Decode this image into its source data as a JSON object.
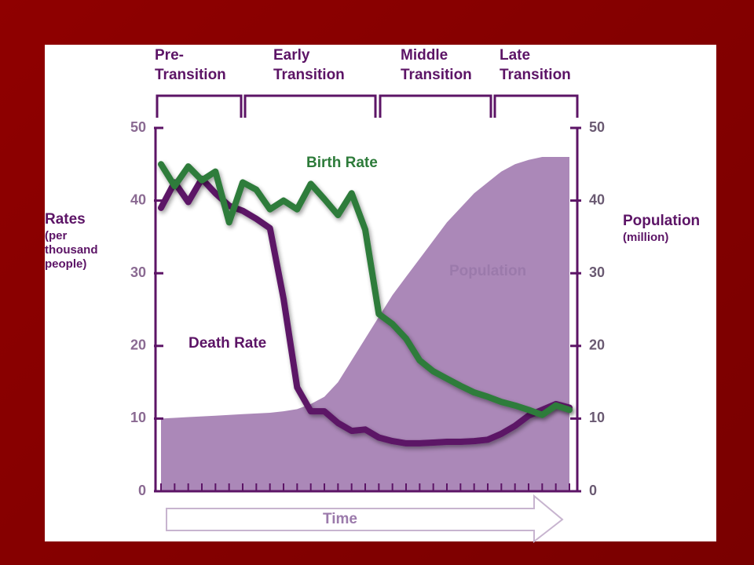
{
  "chart_data": {
    "type": "line",
    "stages": [
      [
        "Pre-",
        "Transition"
      ],
      [
        "Early",
        "Transition"
      ],
      [
        "Middle",
        "Transition"
      ],
      [
        "Late",
        "Transition"
      ]
    ],
    "y_label": [
      "Rates",
      "(per",
      "thousand",
      "people)"
    ],
    "y2_label": [
      "Population",
      "(million)"
    ],
    "x_label": "Time",
    "x": [
      0,
      1,
      2,
      3,
      4,
      5,
      6,
      7,
      8,
      9,
      10,
      11,
      12,
      13,
      14,
      15,
      16,
      17,
      18,
      19,
      20,
      21,
      22,
      23,
      24,
      25,
      26,
      27,
      28,
      29,
      30
    ],
    "xlim": [
      0,
      30
    ],
    "ylim": [
      0,
      50
    ],
    "yticks": [
      0,
      10,
      20,
      30,
      40,
      50
    ],
    "y2lim": [
      0,
      50
    ],
    "y2ticks": [
      0,
      10,
      20,
      30,
      40,
      50
    ],
    "series": [
      {
        "name": "Population",
        "color": "#a27bb0",
        "axis": "y2",
        "kind": "area",
        "values": [
          10,
          10.1,
          10.2,
          10.3,
          10.4,
          10.5,
          10.6,
          10.7,
          10.8,
          11,
          11.3,
          12,
          13,
          15,
          18,
          21,
          24,
          27,
          29.5,
          32,
          34.5,
          37,
          39,
          41,
          42.5,
          44,
          45,
          45.6,
          46,
          46,
          46
        ]
      },
      {
        "name": "Death Rate",
        "color": "#5c1466",
        "values": [
          39,
          42.5,
          39.8,
          43,
          41,
          39.3,
          38.6,
          37.5,
          36.2,
          26.5,
          14.3,
          11,
          11,
          9.4,
          8.3,
          8.5,
          7.4,
          6.9,
          6.6,
          6.6,
          6.7,
          6.8,
          6.8,
          6.9,
          7.1,
          7.9,
          9,
          10.4,
          11.2,
          12,
          11.5
        ]
      },
      {
        "name": "Birth Rate",
        "color": "#2d7b3a",
        "values": [
          45,
          42,
          44.7,
          42.8,
          44,
          37,
          42.5,
          41.5,
          38.8,
          40,
          38.8,
          42.3,
          40.2,
          38,
          41,
          36,
          24.4,
          23,
          21,
          18,
          16.5,
          15.5,
          14.5,
          13.6,
          13,
          12.3,
          11.8,
          11.2,
          10.5,
          11.8,
          11.2
        ]
      }
    ]
  }
}
